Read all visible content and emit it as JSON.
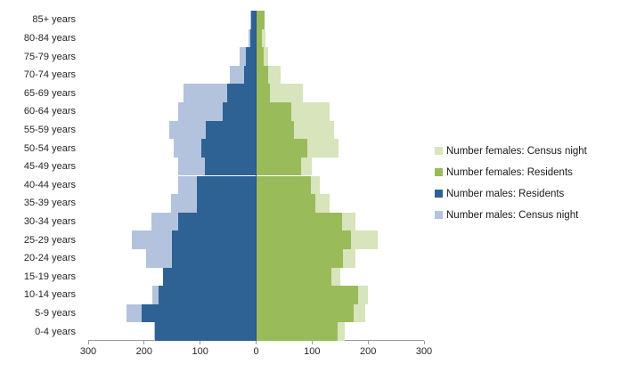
{
  "chart_data": {
    "type": "bar",
    "subtype": "population_pyramid",
    "title": "",
    "grid": false,
    "legend_position": "right",
    "categories_top_to_bottom": [
      "85+ years",
      "80-84 years",
      "75-79 years",
      "70-74 years",
      "65-69 years",
      "60-64 years",
      "55-59 years",
      "50-54 years",
      "45-49 years",
      "40-44 years",
      "35-39 years",
      "30-34 years",
      "25-29 years",
      "20-24 years",
      "15-19 years",
      "10-14 years",
      "5-9 years",
      "0-4 years"
    ],
    "x_axis": {
      "max_each_side": 300,
      "tick_step": 100,
      "tick_values": [
        -300,
        -200,
        -100,
        0,
        100,
        200,
        300
      ],
      "tick_labels": [
        "300",
        "200",
        "100",
        "0",
        "100",
        "200",
        "300"
      ]
    },
    "series": [
      {
        "name": "Number females: Census night",
        "side": "right",
        "layer": "back",
        "color": "#D7E4BC",
        "values": [
          15,
          16,
          21,
          44,
          83,
          131,
          140,
          148,
          100,
          113,
          131,
          178,
          217,
          178,
          150,
          200,
          195,
          158
        ]
      },
      {
        "name": "Number females: Residents",
        "side": "right",
        "layer": "front",
        "color": "#9ABB59",
        "values": [
          15,
          11,
          13,
          21,
          25,
          63,
          68,
          92,
          80,
          98,
          106,
          154,
          169,
          155,
          135,
          183,
          175,
          146
        ]
      },
      {
        "name": "Number males: Residents",
        "side": "left",
        "layer": "front",
        "color": "#2E6295",
        "values": [
          9,
          10,
          18,
          21,
          51,
          60,
          90,
          98,
          92,
          106,
          106,
          140,
          150,
          150,
          167,
          175,
          204,
          180
        ]
      },
      {
        "name": "Number males: Census night",
        "side": "left",
        "layer": "back",
        "color": "#B3C3DD",
        "values": [
          10,
          14,
          30,
          47,
          129,
          139,
          155,
          147,
          139,
          139,
          152,
          187,
          222,
          196,
          165,
          185,
          232,
          183
        ]
      }
    ]
  },
  "colors": {
    "background": "#FFFFFF",
    "axis_line": "#999999",
    "tick_mark": "#999999",
    "center_line": "#33517A",
    "text": "#262626"
  }
}
